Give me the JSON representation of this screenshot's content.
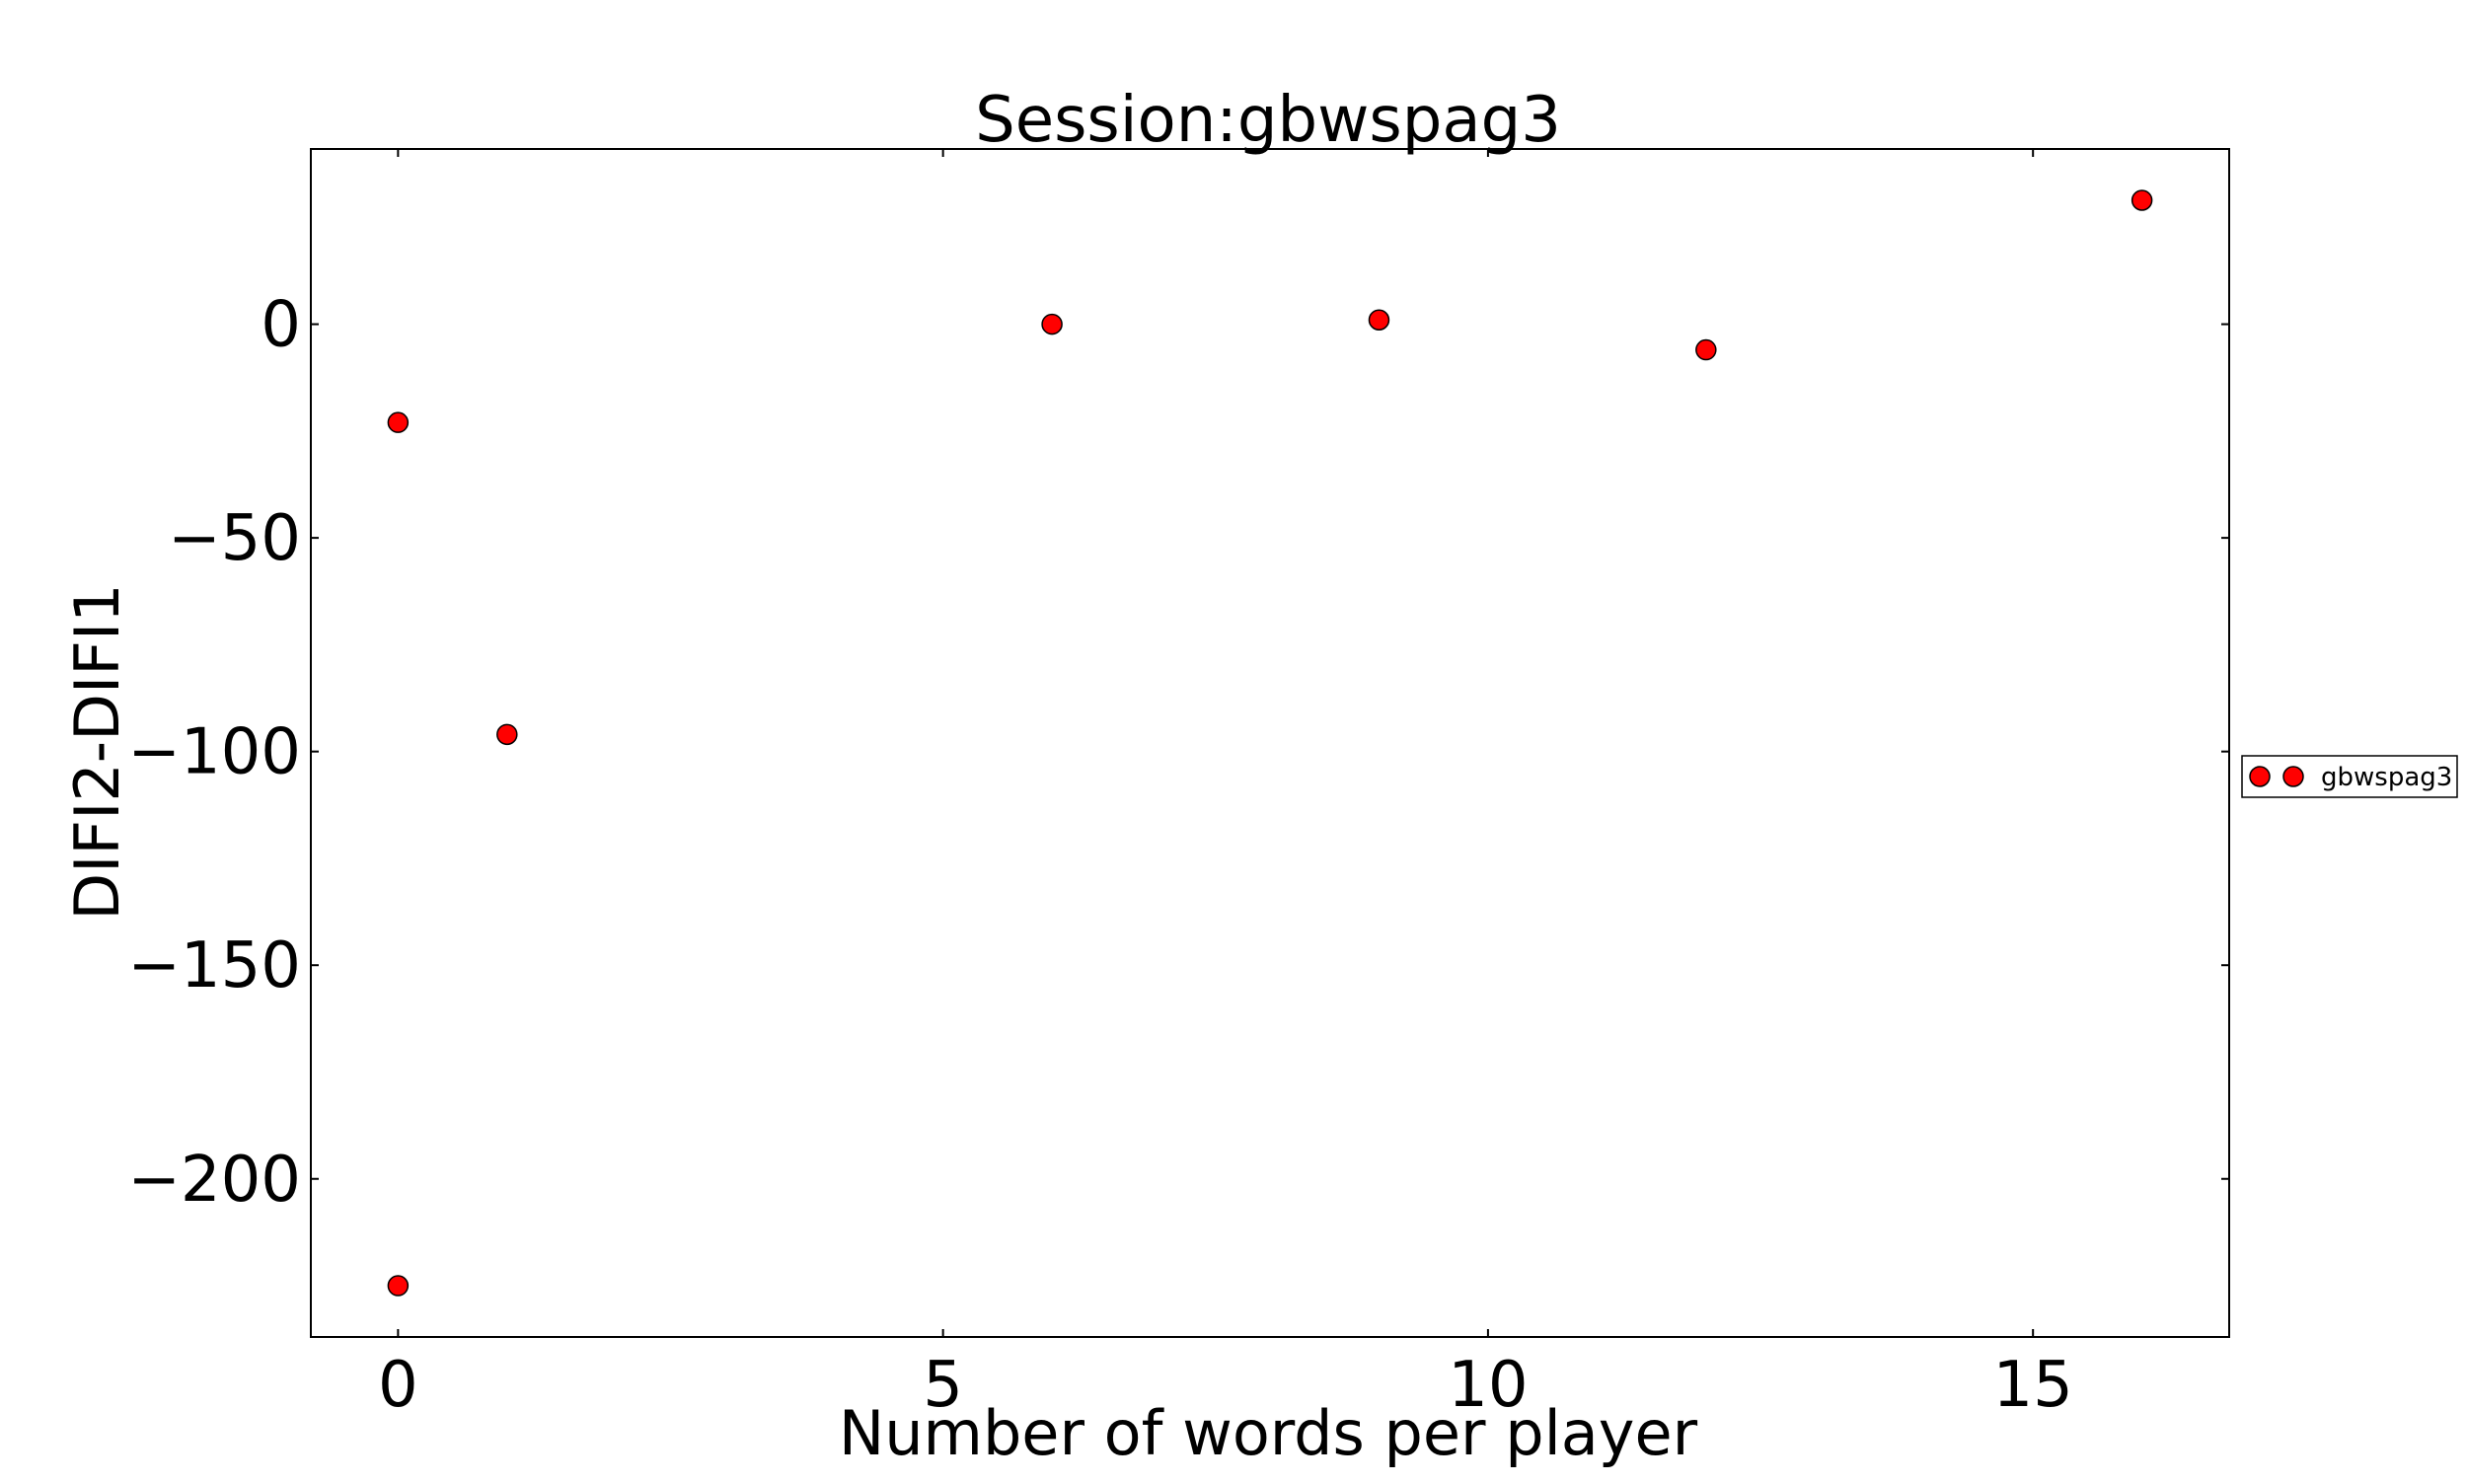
{
  "chart_data": {
    "type": "scatter",
    "title": "Session:gbwspag3",
    "xlabel": "Number of words per player",
    "ylabel": "DIFI2-DIFI1",
    "xlim": [
      -0.8,
      16.8
    ],
    "ylim": [
      -237,
      41
    ],
    "xticks": [
      {
        "value": 0,
        "label": "0"
      },
      {
        "value": 5,
        "label": "5"
      },
      {
        "value": 10,
        "label": "10"
      },
      {
        "value": 15,
        "label": "15"
      }
    ],
    "yticks": [
      {
        "value": 0,
        "label": "0"
      },
      {
        "value": -50,
        "label": "−50"
      },
      {
        "value": -100,
        "label": "−100"
      },
      {
        "value": -150,
        "label": "−150"
      },
      {
        "value": -200,
        "label": "−200"
      }
    ],
    "grid": false,
    "legend_position": "outside-right",
    "series": [
      {
        "name": "gbwspag3",
        "color": "#ff0000",
        "edge_color": "#000000",
        "marker": "circle",
        "points": [
          {
            "x": 0,
            "y": -23
          },
          {
            "x": 0,
            "y": -225
          },
          {
            "x": 1,
            "y": -96
          },
          {
            "x": 6,
            "y": 0
          },
          {
            "x": 9,
            "y": 1
          },
          {
            "x": 12,
            "y": -6
          },
          {
            "x": 16,
            "y": 29
          }
        ]
      }
    ]
  }
}
